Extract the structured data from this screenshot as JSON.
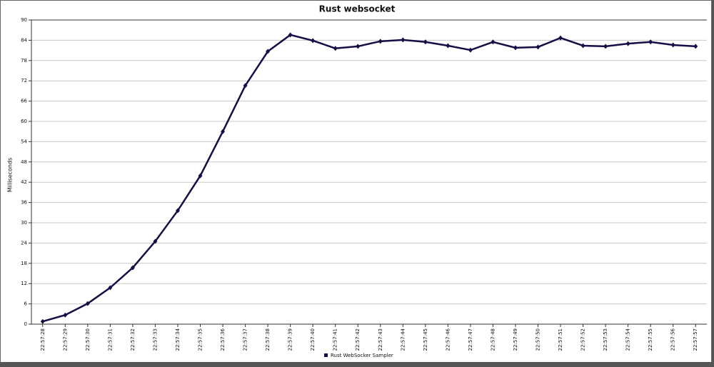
{
  "chart_data": {
    "type": "line",
    "title": "Rust websocket",
    "y_label": "Milliseconds",
    "categories": [
      "22:57:28",
      "22:57:29",
      "22:57:30",
      "22:57:31",
      "22:57:32",
      "22:57:33",
      "22:57:34",
      "22:57:35",
      "22:57:36",
      "22:57:37",
      "22:57:38",
      "22:57:39",
      "22:57:40",
      "22:57:41",
      "22:57:42",
      "22:57:43",
      "22:57:44",
      "22:57:45",
      "22:57:46",
      "22:57:47",
      "22:57:48",
      "22:57:49",
      "22:57:50",
      "22:57:51",
      "22:57:52",
      "22:57:53",
      "22:57:54",
      "22:57:55",
      "22:57:56",
      "22:57:57"
    ],
    "series": [
      {
        "name": "Rust WebSocker Sampler",
        "color": "#140f45",
        "values": [
          0.8,
          2.7,
          6.1,
          10.8,
          16.7,
          24.5,
          33.6,
          43.9,
          57.0,
          70.6,
          80.7,
          85.6,
          83.9,
          81.6,
          82.2,
          83.7,
          84.1,
          83.5,
          82.4,
          81.1,
          83.5,
          81.8,
          82.0,
          84.7,
          82.4,
          82.2,
          83.0,
          83.5,
          82.6,
          82.2
        ]
      }
    ],
    "ylim": [
      0,
      90
    ],
    "yticks": [
      0,
      6,
      12,
      18,
      24,
      30,
      36,
      42,
      48,
      54,
      60,
      66,
      72,
      78,
      84,
      90
    ],
    "grid": true,
    "legend": "bottom"
  }
}
